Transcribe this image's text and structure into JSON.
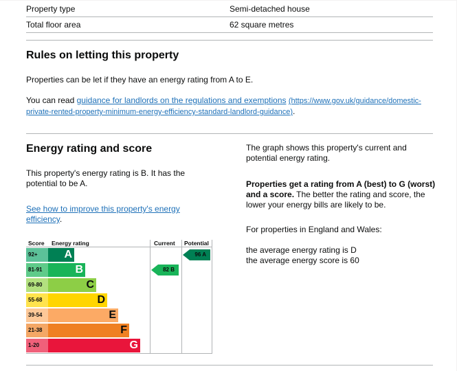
{
  "property": {
    "rows": [
      {
        "label": "Property type",
        "value": "Semi-detached house"
      },
      {
        "label": "Total floor area",
        "value": "62 square metres"
      }
    ]
  },
  "rules": {
    "heading": "Rules on letting this property",
    "para1": "Properties can be let if they have an energy rating from A to E.",
    "para2_prefix": "You can read ",
    "link_text": "guidance for landlords on the regulations and exemptions",
    "link_url_text": "(https://www.gov.uk/guidance/domestic-private-rented-property-minimum-energy-efficiency-standard-landlord-guidance)",
    "para2_suffix": "."
  },
  "energy": {
    "heading": "Energy rating and score",
    "summary": "This property's energy rating is B. It has the potential to be A.",
    "improve_link": "See how to improve this property's energy efficiency",
    "improve_suffix": ".",
    "graph_desc": "The graph shows this property's current and potential energy rating.",
    "bold_text": "Properties get a rating from A (best) to G (worst) and a score.",
    "rest_text": " The better the rating and score, the lower your energy bills are likely to be.",
    "region_text": "For properties in England and Wales:",
    "avg_rating": "the average energy rating is D",
    "avg_score": "the average energy score is 60"
  },
  "chart_data": {
    "type": "table",
    "headers": {
      "score": "Score",
      "rating": "Energy rating",
      "current": "Current",
      "potential": "Potential"
    },
    "bands": [
      {
        "letter": "A",
        "range": "92+",
        "color": "#008054",
        "score_bg": "#5cc199"
      },
      {
        "letter": "B",
        "range": "81-91",
        "color": "#19b459",
        "score_bg": "#5fcb8a"
      },
      {
        "letter": "C",
        "range": "69-80",
        "color": "#8dce46",
        "score_bg": "#b3e07f"
      },
      {
        "letter": "D",
        "range": "55-68",
        "color": "#ffd500",
        "score_bg": "#ffe34d"
      },
      {
        "letter": "E",
        "range": "39-54",
        "color": "#fcaa65",
        "score_bg": "#fdc898"
      },
      {
        "letter": "F",
        "range": "21-38",
        "color": "#ef8023",
        "score_bg": "#f4a766"
      },
      {
        "letter": "G",
        "range": "1-20",
        "color": "#e9153b",
        "score_bg": "#f0607a"
      }
    ],
    "current": {
      "score": 82,
      "letter": "B",
      "label": "82 B",
      "color": "#19b459"
    },
    "potential": {
      "score": 96,
      "letter": "A",
      "label": "96 A",
      "color": "#008054"
    }
  }
}
